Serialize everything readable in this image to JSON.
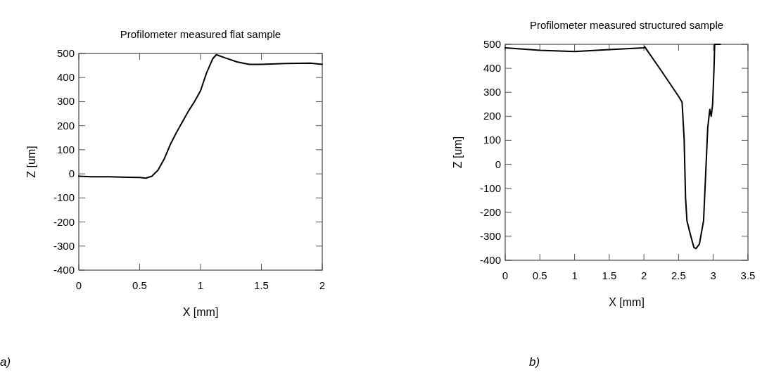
{
  "chart_data": [
    {
      "type": "line",
      "title": "Profilometer measured flat sample",
      "xlabel": "X [mm]",
      "ylabel": "Z [um]",
      "annotations": [
        "a)"
      ],
      "xlim": [
        0,
        2
      ],
      "xticks": [
        0,
        0.5,
        1,
        1.5,
        2
      ],
      "ylim": [
        -400,
        500
      ],
      "yticks": [
        -400,
        -300,
        -200,
        -100,
        0,
        100,
        200,
        300,
        400,
        500
      ],
      "x": [
        0,
        0.1,
        0.25,
        0.4,
        0.5,
        0.55,
        0.6,
        0.65,
        0.7,
        0.75,
        0.8,
        0.85,
        0.9,
        0.95,
        1.0,
        1.05,
        1.1,
        1.13,
        1.2,
        1.3,
        1.4,
        1.5,
        1.7,
        1.9,
        2.0
      ],
      "series": [
        {
          "color": "#000000",
          "values": [
            -10,
            -12,
            -12,
            -14,
            -15,
            -18,
            -10,
            15,
            60,
            120,
            170,
            215,
            260,
            300,
            345,
            420,
            478,
            495,
            482,
            465,
            455,
            455,
            458,
            460,
            455
          ]
        }
      ]
    },
    {
      "type": "line",
      "title": "Profilometer measured structured sample",
      "xlabel": "X [mm]",
      "ylabel": "Z [um]",
      "annotations": [
        "b)"
      ],
      "xlim": [
        0,
        3.5
      ],
      "xticks": [
        0,
        0.5,
        1,
        1.5,
        2,
        2.5,
        3,
        3.5
      ],
      "ylim": [
        -400,
        500
      ],
      "yticks": [
        -400,
        -300,
        -200,
        -100,
        0,
        100,
        200,
        300,
        400,
        500
      ],
      "x": [
        0,
        0.5,
        1,
        1.5,
        2,
        2.01,
        2.25,
        2.5,
        2.55,
        2.58,
        2.6,
        2.62,
        2.67,
        2.72,
        2.75,
        2.8,
        2.86,
        2.89,
        2.92,
        2.95,
        2.97,
        2.99,
        3.01,
        3.02,
        3.1
      ],
      "series": [
        {
          "color": "#000000",
          "values": [
            485,
            475,
            470,
            478,
            485,
            490,
            390,
            283,
            259,
            104,
            -138,
            -235,
            -293,
            -346,
            -351,
            -332,
            -235,
            -42,
            152,
            229,
            200,
            248,
            394,
            500,
            500
          ]
        }
      ]
    }
  ]
}
